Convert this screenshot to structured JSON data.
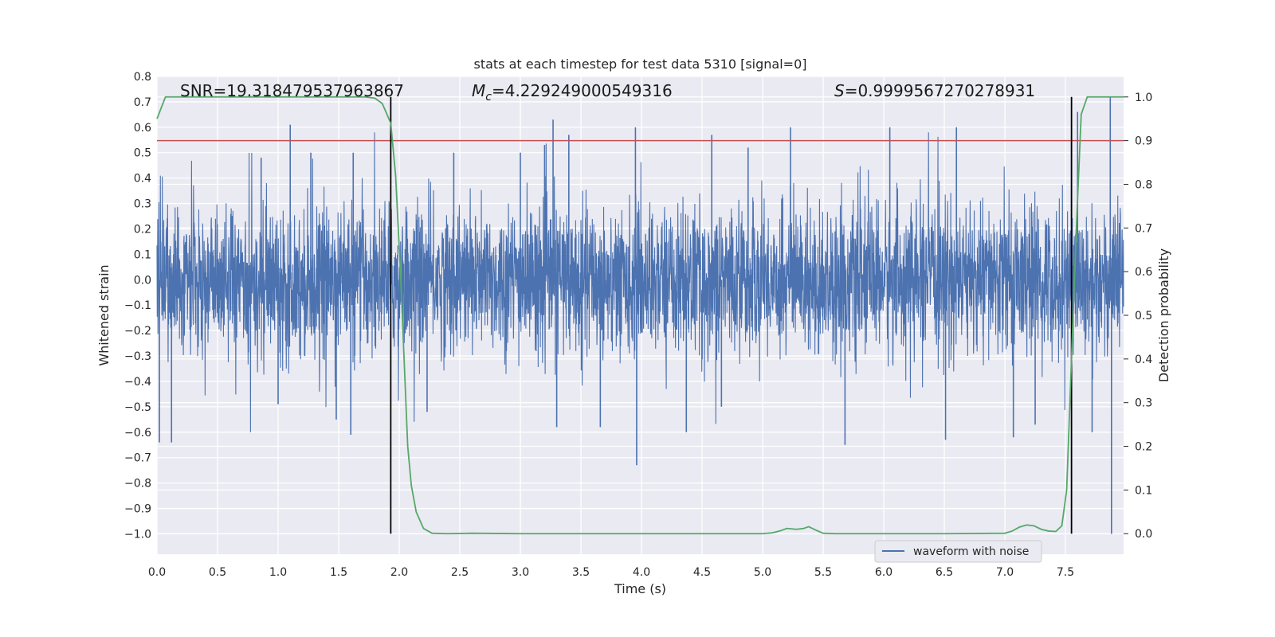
{
  "chart_data": {
    "type": "line",
    "title": "stats at each timestep for test data 5310 [signal=0]",
    "xlabel": "Time (s)",
    "ylabel": "Whitened strain",
    "y2label": "Detection probability",
    "xlim": [
      0.0,
      7.98
    ],
    "ylim": [
      -1.08,
      0.8
    ],
    "y2lim": [
      -0.047,
      1.047
    ],
    "xticks": [
      "0.0",
      "0.5",
      "1.0",
      "1.5",
      "2.0",
      "2.5",
      "3.0",
      "3.5",
      "4.0",
      "4.5",
      "5.0",
      "5.5",
      "6.0",
      "6.5",
      "7.0",
      "7.5"
    ],
    "yticks": [
      "0.8",
      "0.7",
      "0.6",
      "0.5",
      "0.4",
      "0.3",
      "0.2",
      "0.1",
      "0.0",
      "−0.1",
      "−0.2",
      "−0.3",
      "−0.4",
      "−0.5",
      "−0.6",
      "−0.7",
      "−0.8",
      "−0.9",
      "−1.0"
    ],
    "y2ticks": [
      "1.0",
      "0.9",
      "0.8",
      "0.7",
      "0.6",
      "0.5",
      "0.4",
      "0.3",
      "0.2",
      "0.1",
      "0.0"
    ],
    "grid": true,
    "annotations": {
      "snr": "SNR=19.318479537963867",
      "mc_symbol": "M",
      "mc_sub": "c",
      "mc_value": "=4.229249000549316",
      "s_symbol": "S",
      "s_value": "=0.9999567270278931"
    },
    "threshold": 0.9,
    "vlines": [
      1.93,
      7.55
    ],
    "series": [
      {
        "name": "waveform with noise",
        "axis": "left",
        "color": "#4c72b0",
        "envelope": "dense noise, |strain| mostly within 0.3, peaks up to 0.72 and down to -1.0",
        "peaks": [
          [
            0.02,
            -0.64
          ],
          [
            0.12,
            -0.64
          ],
          [
            0.86,
            0.48
          ],
          [
            1.0,
            -0.49
          ],
          [
            1.1,
            0.61
          ],
          [
            1.27,
            0.5
          ],
          [
            1.48,
            -0.55
          ],
          [
            1.6,
            -0.61
          ],
          [
            1.62,
            0.5
          ],
          [
            2.23,
            -0.52
          ],
          [
            2.45,
            0.5
          ],
          [
            3.0,
            0.5
          ],
          [
            3.2,
            0.53
          ],
          [
            3.27,
            0.63
          ],
          [
            3.3,
            -0.58
          ],
          [
            3.4,
            0.57
          ],
          [
            3.66,
            -0.58
          ],
          [
            3.95,
            0.6
          ],
          [
            3.96,
            -0.73
          ],
          [
            4.37,
            -0.6
          ],
          [
            4.58,
            0.57
          ],
          [
            4.66,
            -0.5
          ],
          [
            4.88,
            0.52
          ],
          [
            5.23,
            0.6
          ],
          [
            5.68,
            -0.65
          ],
          [
            6.05,
            0.6
          ],
          [
            6.51,
            -0.63
          ],
          [
            6.6,
            0.6
          ],
          [
            7.07,
            -0.62
          ],
          [
            7.25,
            -0.57
          ],
          [
            7.55,
            0.55
          ],
          [
            7.6,
            0.66
          ],
          [
            7.72,
            -0.6
          ],
          [
            7.87,
            0.72
          ],
          [
            7.88,
            -1.0
          ]
        ]
      },
      {
        "name": "detection probability",
        "axis": "right",
        "color": "#55a868",
        "x": [
          0.0,
          0.07,
          0.2,
          0.5,
          1.0,
          1.5,
          1.72,
          1.8,
          1.86,
          1.93,
          1.97,
          2.01,
          2.04,
          2.07,
          2.1,
          2.14,
          2.2,
          2.27,
          2.4,
          2.6,
          3.0,
          3.5,
          4.0,
          4.5,
          5.0,
          5.08,
          5.14,
          5.2,
          5.28,
          5.34,
          5.38,
          5.44,
          5.5,
          5.6,
          6.0,
          6.5,
          7.0,
          7.06,
          7.12,
          7.18,
          7.24,
          7.3,
          7.36,
          7.42,
          7.47,
          7.51,
          7.55,
          7.59,
          7.63,
          7.68,
          7.75,
          7.98
        ],
        "y": [
          0.95,
          1.0,
          1.0,
          1.0,
          1.0,
          1.0,
          1.0,
          0.997,
          0.985,
          0.94,
          0.82,
          0.6,
          0.4,
          0.2,
          0.11,
          0.05,
          0.012,
          0.001,
          0.0,
          0.001,
          0.0,
          0.0,
          0.0,
          0.0,
          0.0,
          0.002,
          0.006,
          0.012,
          0.01,
          0.012,
          0.016,
          0.008,
          0.001,
          0.0,
          0.0,
          0.0,
          0.001,
          0.006,
          0.015,
          0.02,
          0.018,
          0.01,
          0.006,
          0.005,
          0.018,
          0.1,
          0.4,
          0.7,
          0.96,
          1.0,
          1.0,
          1.0
        ]
      }
    ],
    "legend": {
      "placement": "lower-center",
      "label": "waveform with noise"
    }
  }
}
